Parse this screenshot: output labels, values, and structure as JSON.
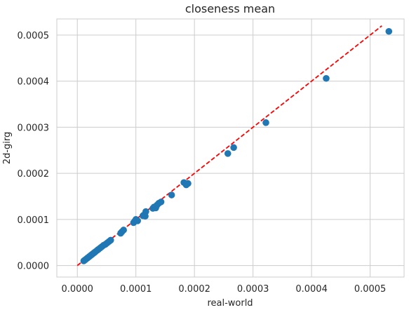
{
  "chart_data": {
    "type": "scatter",
    "title": "closeness mean",
    "xlabel": "real-world",
    "ylabel": "2d-girg",
    "xlim": [
      -3.5e-05,
      0.000558
    ],
    "ylim": [
      -2.5e-05,
      0.000535
    ],
    "grid": true,
    "xticks": [
      0,
      0.0001,
      0.0002,
      0.0003,
      0.0004,
      0.0005
    ],
    "xtick_labels": [
      "0.0000",
      "0.0001",
      "0.0002",
      "0.0003",
      "0.0004",
      "0.0005"
    ],
    "yticks": [
      0,
      0.0001,
      0.0002,
      0.0003,
      0.0004,
      0.0005
    ],
    "ytick_labels": [
      "0.0000",
      "0.0001",
      "0.0002",
      "0.0003",
      "0.0004",
      "0.0005"
    ],
    "series": [
      {
        "color": "#1f77b4",
        "x": [
          1.1e-05,
          1.3e-05,
          1.5e-05,
          1.7e-05,
          1.9e-05,
          2.1e-05,
          2.3e-05,
          2.5e-05,
          2.7e-05,
          2.9e-05,
          3.1e-05,
          3.4e-05,
          3.6e-05,
          3.9e-05,
          4.2e-05,
          4.5e-05,
          4.8e-05,
          5.1e-05,
          5.4e-05,
          5.7e-05,
          7.4e-05,
          7.6e-05,
          7.9e-05,
          9.6e-05,
          9.8e-05,
          0.0001,
          0.000103,
          0.000112,
          0.000114,
          0.000116,
          0.000117,
          0.000129,
          0.000131,
          0.000134,
          0.000136,
          0.000139,
          0.000143,
          0.000161,
          0.000182,
          0.000186,
          0.000189,
          0.000257,
          0.000267,
          0.000322,
          0.000425,
          0.000532
        ],
        "y": [
          1e-05,
          1.2e-05,
          1.4e-05,
          1.6e-05,
          1.8e-05,
          2e-05,
          2.2e-05,
          2.4e-05,
          2.6e-05,
          2.8e-05,
          3e-05,
          3.3e-05,
          3.5e-05,
          3.8e-05,
          4.1e-05,
          4.4e-05,
          4.6e-05,
          4.9e-05,
          5.2e-05,
          5.5e-05,
          7e-05,
          7.3e-05,
          7.7e-05,
          9.3e-05,
          9.6e-05,
          0.0001,
          9.7e-05,
          0.000108,
          0.00011,
          0.000107,
          0.000117,
          0.000124,
          0.000127,
          0.000125,
          0.000131,
          0.000135,
          0.000138,
          0.000153,
          0.00018,
          0.000175,
          0.000178,
          0.000243,
          0.000256,
          0.00031,
          0.000406,
          0.000508
        ]
      }
    ],
    "reference_line": {
      "style": "dashed",
      "color": "#ff0000",
      "x": [
        0,
        0.00052
      ],
      "y": [
        0,
        0.00052
      ]
    }
  }
}
